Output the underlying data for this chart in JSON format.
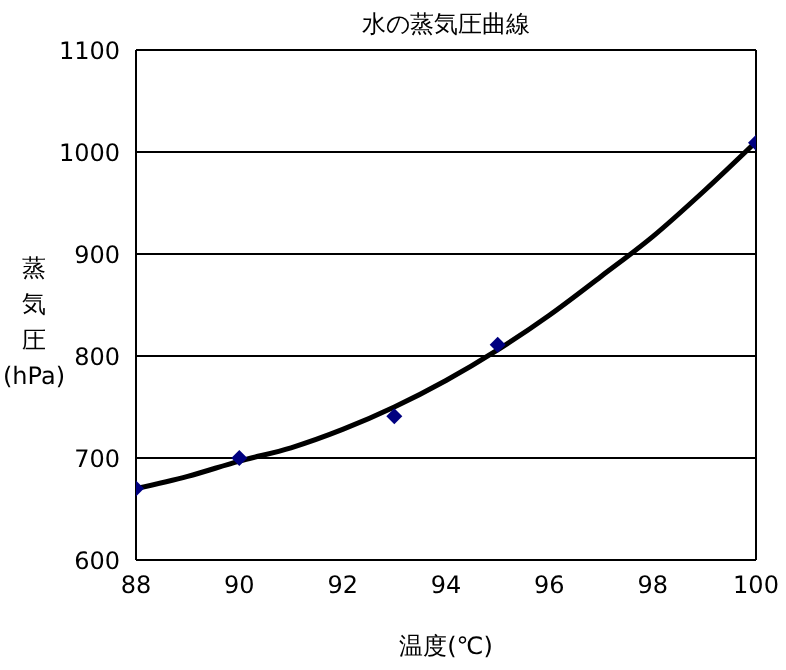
{
  "chart_data": {
    "type": "scatter",
    "title": "水の蒸気圧曲線",
    "xlabel": "温度(℃)",
    "ylabel": "蒸気圧(hPa)",
    "xlim": [
      88,
      100
    ],
    "ylim": [
      600,
      1100
    ],
    "xticks": [
      88,
      90,
      92,
      94,
      96,
      98,
      100
    ],
    "yticks": [
      600,
      700,
      800,
      900,
      1000,
      1100
    ],
    "grid": "y",
    "series": [
      {
        "color": "#000080",
        "marker": "diamond",
        "x": [
          88,
          90,
          93,
          95,
          100
        ],
        "values": [
          670,
          700,
          741,
          811,
          1009
        ]
      },
      {
        "type": "line",
        "color": "#000000",
        "marker": "none",
        "line_style": "solid",
        "x": [
          88,
          89,
          90,
          91,
          92,
          93,
          94,
          95,
          96,
          97,
          98,
          99,
          100
        ],
        "values": [
          670,
          682,
          697,
          710,
          728,
          750,
          776,
          806,
          840,
          878,
          917,
          962,
          1010
        ]
      }
    ]
  }
}
